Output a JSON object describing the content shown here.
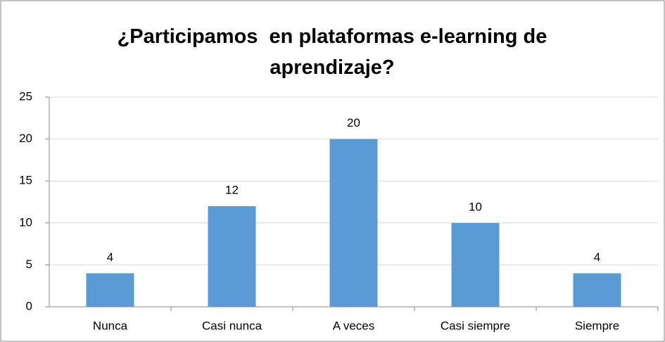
{
  "chart_data": {
    "type": "bar",
    "title": "¿Participamos  en plataformas e-learning de aprendizaje?",
    "categories": [
      "Nunca",
      "Casi nunca",
      "A veces",
      "Casi siempre",
      "Siempre"
    ],
    "values": [
      4,
      12,
      20,
      10,
      4
    ],
    "color": "#5b9bd5",
    "ylim": [
      0,
      25
    ],
    "yticks": [
      0,
      5,
      10,
      15,
      20,
      25
    ],
    "grid": true
  }
}
